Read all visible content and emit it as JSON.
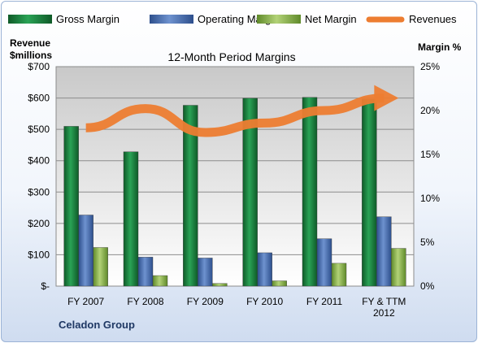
{
  "chart_data": {
    "type": "bar",
    "title": "12-Month Period Margins",
    "company": "Celadon Group",
    "y_left_label_line1": "Revenue",
    "y_left_label_line2": "$millions",
    "y_right_label": "Margin %",
    "categories": [
      [
        "FY 2007"
      ],
      [
        "FY 2008"
      ],
      [
        "FY 2009"
      ],
      [
        "FY 2010"
      ],
      [
        "FY 2011"
      ],
      [
        "FY & TTM",
        "2012"
      ]
    ],
    "ylim_left": [
      0,
      700
    ],
    "ylim_right": [
      0,
      25
    ],
    "left_ticks": [
      {
        "value": 0,
        "label": "$-"
      },
      {
        "value": 100,
        "label": "$100"
      },
      {
        "value": 200,
        "label": "$200"
      },
      {
        "value": 300,
        "label": "$300"
      },
      {
        "value": 400,
        "label": "$400"
      },
      {
        "value": 500,
        "label": "$500"
      },
      {
        "value": 600,
        "label": "$600"
      },
      {
        "value": 700,
        "label": "$700"
      }
    ],
    "right_ticks": [
      {
        "value": 0,
        "label": "0%"
      },
      {
        "value": 5,
        "label": "5%"
      },
      {
        "value": 10,
        "label": "10%"
      },
      {
        "value": 15,
        "label": "15%"
      },
      {
        "value": 20,
        "label": "20%"
      },
      {
        "value": 25,
        "label": "25%"
      }
    ],
    "grid": true,
    "legend_position": "top",
    "series": [
      {
        "name": "Gross Margin",
        "kind": "bar",
        "axis": "right",
        "color": "#1e7a3c",
        "values": [
          18.2,
          15.3,
          20.6,
          21.4,
          21.5,
          21.3
        ]
      },
      {
        "name": "Operating Margin",
        "kind": "bar",
        "axis": "right",
        "color": "#4a6fb0",
        "values": [
          8.1,
          3.3,
          3.2,
          3.8,
          5.4,
          7.9
        ]
      },
      {
        "name": "Net Margin",
        "kind": "bar",
        "axis": "right",
        "color": "#8db050",
        "values": [
          4.4,
          1.2,
          0.3,
          0.6,
          2.6,
          4.3
        ]
      },
      {
        "name": "Revenues",
        "kind": "line",
        "axis": "left",
        "color": "#ed7d31",
        "values": [
          505,
          566,
          490,
          520,
          560,
          600
        ]
      }
    ]
  }
}
